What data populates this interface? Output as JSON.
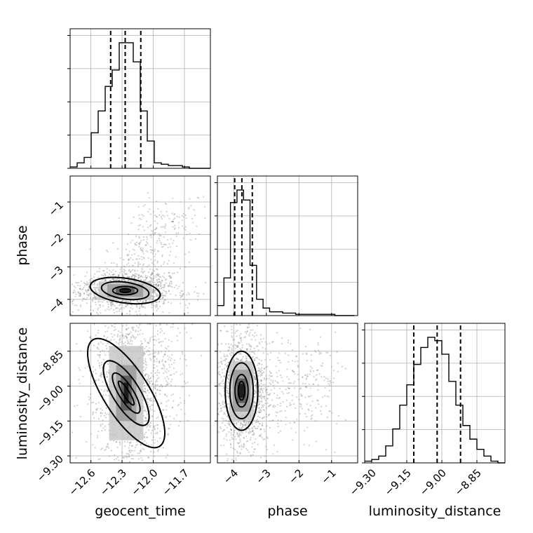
{
  "chart_data": {
    "type": "corner",
    "parameters": [
      "geocent_time",
      "phase",
      "luminosity_distance"
    ],
    "ranges": {
      "geocent_time": [
        -12.8,
        -11.45
      ],
      "phase": [
        -4.5,
        -0.2
      ],
      "luminosity_distance": [
        -9.33,
        -8.73
      ]
    },
    "ticks": {
      "geocent_time": [
        -12.6,
        -12.3,
        -12.0,
        -11.7
      ],
      "phase": [
        -4,
        -3,
        -2,
        -1
      ],
      "luminosity_distance": [
        -9.3,
        -9.15,
        -9.0,
        -8.85
      ]
    },
    "tick_labels": {
      "geocent_time": [
        "−12.6",
        "−12.3",
        "−12.0",
        "−11.7"
      ],
      "phase": [
        "−4",
        "−3",
        "−2",
        "−1"
      ],
      "phase_y": [
        "−4",
        "−3",
        "−2",
        "−1"
      ],
      "luminosity_distance": [
        "−9.30",
        "−9.15",
        "−9.00",
        "−8.85"
      ]
    },
    "grid": true,
    "histograms": {
      "geocent_time": {
        "bin_start": -12.8,
        "bin_width": 0.0675,
        "counts": [
          1,
          4,
          8,
          26,
          42,
          60,
          72,
          92,
          92,
          78,
          42,
          20,
          4,
          3,
          2,
          2,
          1,
          0,
          0,
          0
        ],
        "quantiles": [
          -12.41,
          -12.27,
          -12.12
        ]
      },
      "phase": {
        "bin_start": -4.5,
        "bin_width": 0.2,
        "counts": [
          8,
          30,
          90,
          100,
          92,
          40,
          13,
          6,
          3,
          3,
          2,
          2,
          1,
          1,
          1,
          1,
          1,
          1,
          0,
          0,
          0
        ],
        "quantiles": [
          -3.97,
          -3.75,
          -3.43
        ]
      },
      "luminosity_distance": {
        "bin_start": -9.33,
        "bin_width": 0.03,
        "counts": [
          1,
          2,
          4,
          10,
          20,
          34,
          46,
          58,
          68,
          74,
          72,
          64,
          48,
          34,
          22,
          14,
          8,
          4,
          1,
          0
        ],
        "quantiles": [
          -9.12,
          -9.02,
          -8.92
        ]
      }
    },
    "joint": {
      "phase_vs_geocent_time": {
        "center": [
          -12.27,
          -3.73
        ],
        "contours": [
          {
            "rx": 0.05,
            "ry": 0.06,
            "rot": 0
          },
          {
            "rx": 0.12,
            "ry": 0.13,
            "rot": 0
          },
          {
            "rx": 0.23,
            "ry": 0.26,
            "rot": -0.1
          },
          {
            "rx": 0.34,
            "ry": 0.38,
            "rot": -0.1
          }
        ]
      },
      "luminosity_distance_vs_geocent_time": {
        "center": [
          -12.26,
          -9.03
        ],
        "contours": [
          {
            "rx": 0.03,
            "ry": 0.06,
            "rot": 0.4
          },
          {
            "rx": 0.07,
            "ry": 0.1,
            "rot": 0.4
          },
          {
            "rx": 0.13,
            "ry": 0.16,
            "rot": 0.4
          },
          {
            "rx": 0.22,
            "ry": 0.27,
            "rot": 0.4
          }
        ]
      },
      "luminosity_distance_vs_phase": {
        "center": [
          -3.76,
          -9.02
        ],
        "contours": [
          {
            "rx": 0.1,
            "ry": 0.04,
            "rot": 0
          },
          {
            "rx": 0.2,
            "ry": 0.07,
            "rot": 0
          },
          {
            "rx": 0.36,
            "ry": 0.12,
            "rot": 0
          },
          {
            "rx": 0.5,
            "ry": 0.17,
            "rot": 0
          }
        ]
      }
    }
  }
}
